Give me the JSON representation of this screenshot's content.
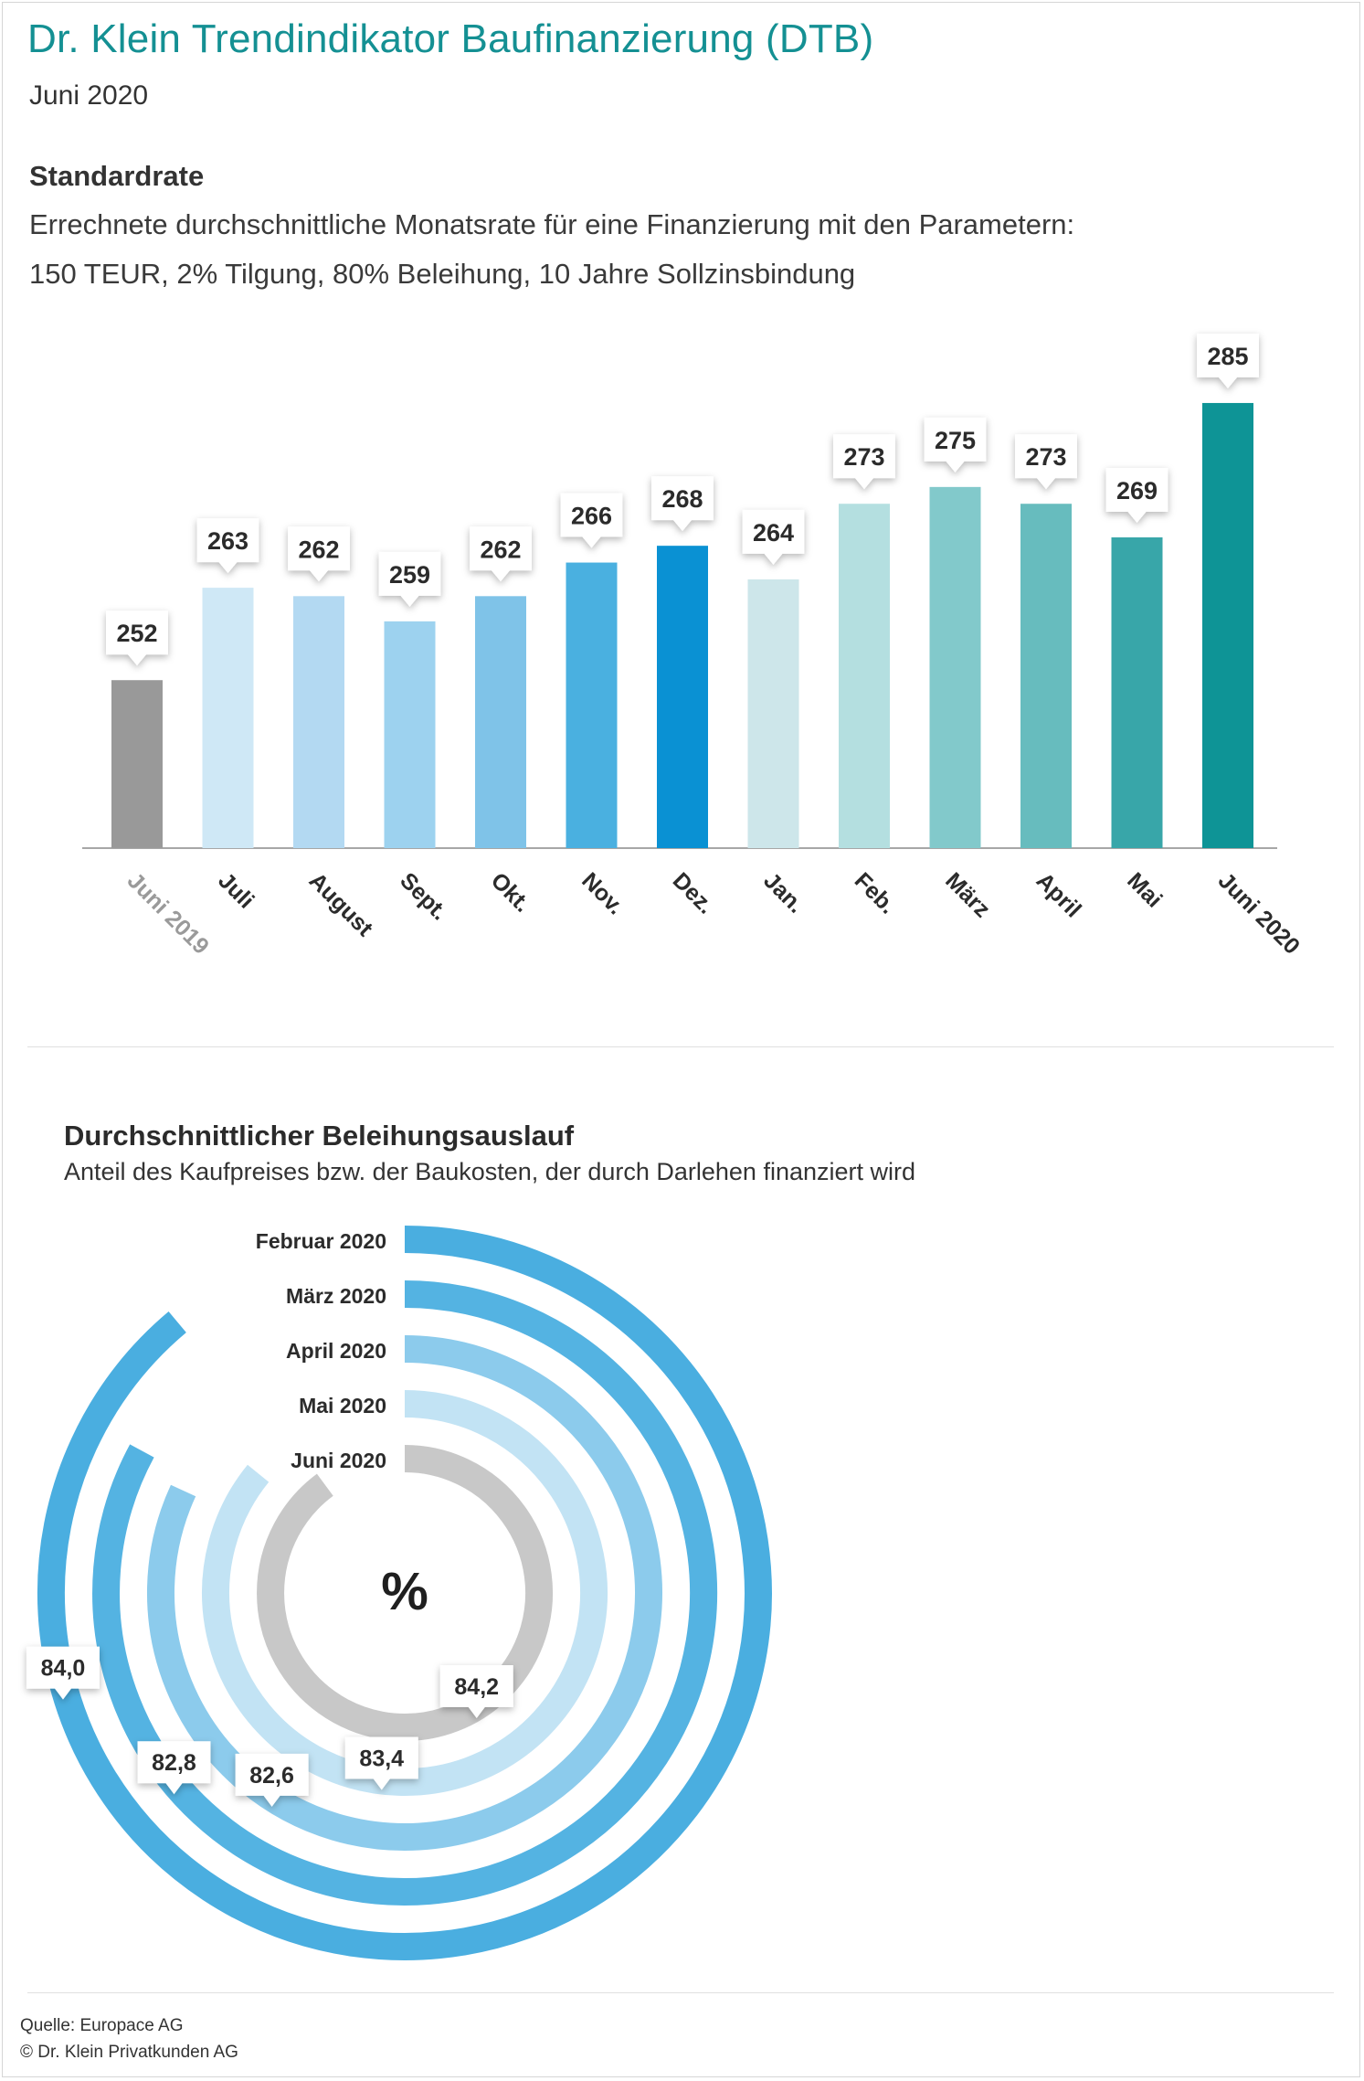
{
  "header": {
    "title": "Dr. Klein Trendindikator Baufinanzierung (DTB)",
    "subtitle": "Juni 2020"
  },
  "standardrate": {
    "title": "Standardrate",
    "desc_line1": "Errechnete durchschnittliche Monatsrate für eine Finanzierung mit den Parametern:",
    "desc_line2": "150 TEUR, 2% Tilgung, 80% Beleihung, 10 Jahre Sollzinsbindung"
  },
  "beleihung": {
    "title": "Durchschnittlicher Beleihungsauslauf",
    "desc": "Anteil des Kaufpreises bzw. der Baukosten, der durch Darlehen finanziert wird",
    "center_symbol": "%"
  },
  "footer": {
    "source": "Quelle: Europace AG",
    "copyright": "© Dr. Klein Privatkunden AG"
  },
  "chart_data": [
    {
      "type": "bar",
      "categories": [
        "Juni 2019",
        "Juli",
        "August",
        "Sept.",
        "Okt.",
        "Nov.",
        "Dez.",
        "Jan.",
        "Feb.",
        "März",
        "April",
        "Mai",
        "Juni 2020"
      ],
      "values": [
        252,
        263,
        262,
        259,
        262,
        266,
        268,
        264,
        273,
        275,
        273,
        269,
        285
      ],
      "colors": [
        "#999999",
        "#cfe8f6",
        "#b3d9f2",
        "#9dd2ef",
        "#7fc3e8",
        "#4ab0e0",
        "#0a91d3",
        "#cde6ea",
        "#b4dfe0",
        "#82c9cb",
        "#67bcbe",
        "#38a6a9",
        "#0e9496"
      ],
      "label_colors": [
        "#9a9a9a",
        "#2b2b2b",
        "#2b2b2b",
        "#2b2b2b",
        "#2b2b2b",
        "#2b2b2b",
        "#2b2b2b",
        "#2b2b2b",
        "#2b2b2b",
        "#2b2b2b",
        "#2b2b2b",
        "#2b2b2b",
        "#2b2b2b"
      ],
      "ylim": [
        232,
        290
      ],
      "grid": false
    },
    {
      "type": "radial-bar",
      "series": [
        {
          "name": "Februar 2020",
          "value": 84.0,
          "color": "#4aaee0"
        },
        {
          "name": "März 2020",
          "value": 82.8,
          "color": "#54b3e2"
        },
        {
          "name": "April 2020",
          "value": 82.6,
          "color": "#8ccbec"
        },
        {
          "name": "Mai 2020",
          "value": 83.4,
          "color": "#c2e3f4"
        },
        {
          "name": "Juni 2020",
          "value": 84.2,
          "color": "#c8c8c8"
        }
      ]
    }
  ]
}
